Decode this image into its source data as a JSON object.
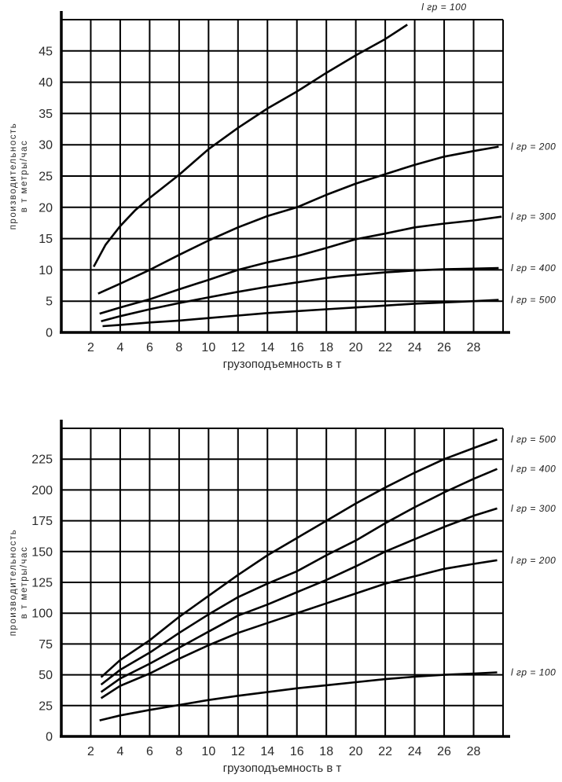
{
  "page": {
    "background": "#ffffff",
    "line_color": "#000000",
    "text_color": "#2a2a2a"
  },
  "chart_data": [
    {
      "type": "line",
      "title": "",
      "xlabel": "грузоподъемность в т",
      "ylabel": "производительность в т метры/час",
      "ylabel_lines": [
        "производительность",
        "в т метры/час"
      ],
      "xlim": [
        0,
        30
      ],
      "ylim": [
        0,
        50
      ],
      "grid": true,
      "x_ticks": [
        2,
        4,
        6,
        8,
        10,
        12,
        14,
        16,
        18,
        20,
        22,
        24,
        26,
        28
      ],
      "y_ticks": [
        0,
        5,
        10,
        15,
        20,
        25,
        30,
        35,
        40,
        45
      ],
      "legend_position": "labels-at-curve-ends",
      "series": [
        {
          "name": "l гр = 100",
          "label_pos": "top",
          "points": [
            [
              2.2,
              10.5
            ],
            [
              3,
              14
            ],
            [
              4,
              17
            ],
            [
              5,
              19.5
            ],
            [
              6,
              21.5
            ],
            [
              8,
              25.2
            ],
            [
              10,
              29.3
            ],
            [
              12,
              32.7
            ],
            [
              14,
              35.8
            ],
            [
              16,
              38.5
            ],
            [
              18,
              41.5
            ],
            [
              20,
              44.3
            ],
            [
              22,
              46.9
            ],
            [
              23.5,
              49.2
            ]
          ]
        },
        {
          "name": "l гр = 200",
          "label_pos": "right",
          "points": [
            [
              2.5,
              6.2
            ],
            [
              4,
              7.8
            ],
            [
              6,
              10
            ],
            [
              8,
              12.4
            ],
            [
              10,
              14.7
            ],
            [
              12,
              16.8
            ],
            [
              14,
              18.6
            ],
            [
              16,
              20
            ],
            [
              18,
              22
            ],
            [
              20,
              23.8
            ],
            [
              22,
              25.3
            ],
            [
              24,
              26.8
            ],
            [
              26,
              28.1
            ],
            [
              28,
              29
            ],
            [
              29.7,
              29.7
            ]
          ]
        },
        {
          "name": "l гр = 300",
          "label_pos": "right",
          "points": [
            [
              2.6,
              3
            ],
            [
              4,
              4
            ],
            [
              6,
              5.3
            ],
            [
              8,
              6.9
            ],
            [
              10,
              8.4
            ],
            [
              12,
              10
            ],
            [
              14,
              11.2
            ],
            [
              16,
              12.2
            ],
            [
              18,
              13.5
            ],
            [
              20,
              14.9
            ],
            [
              22,
              15.8
            ],
            [
              24,
              16.8
            ],
            [
              26,
              17.4
            ],
            [
              28,
              17.9
            ],
            [
              29.9,
              18.5
            ]
          ]
        },
        {
          "name": "l гр = 400",
          "label_pos": "right",
          "points": [
            [
              2.7,
              1.8
            ],
            [
              4,
              2.6
            ],
            [
              6,
              3.7
            ],
            [
              8,
              4.7
            ],
            [
              10,
              5.6
            ],
            [
              12,
              6.5
            ],
            [
              14,
              7.3
            ],
            [
              16,
              8
            ],
            [
              18,
              8.7
            ],
            [
              19,
              9
            ],
            [
              22,
              9.6
            ],
            [
              24,
              9.9
            ],
            [
              26,
              10.1
            ],
            [
              28,
              10.2
            ],
            [
              29.7,
              10.3
            ]
          ]
        },
        {
          "name": "l гр = 500",
          "label_pos": "right",
          "points": [
            [
              2.8,
              1
            ],
            [
              4,
              1.2
            ],
            [
              6,
              1.6
            ],
            [
              8,
              1.9
            ],
            [
              10,
              2.3
            ],
            [
              12,
              2.7
            ],
            [
              14,
              3.1
            ],
            [
              16,
              3.4
            ],
            [
              18,
              3.7
            ],
            [
              20,
              4
            ],
            [
              22,
              4.3
            ],
            [
              24,
              4.6
            ],
            [
              26,
              4.8
            ],
            [
              28,
              5
            ],
            [
              29.7,
              5.2
            ]
          ]
        }
      ]
    },
    {
      "type": "line",
      "title": "",
      "xlabel": "грузоподъемность в т",
      "ylabel": "производительность в т метры/час",
      "ylabel_lines": [
        "производительность",
        "в т метры/час"
      ],
      "xlim": [
        0,
        30
      ],
      "ylim": [
        0,
        250
      ],
      "grid": true,
      "x_ticks": [
        2,
        4,
        6,
        8,
        10,
        12,
        14,
        16,
        18,
        20,
        22,
        24,
        26,
        28
      ],
      "y_ticks": [
        0,
        25,
        50,
        75,
        100,
        125,
        150,
        175,
        200,
        225
      ],
      "legend_position": "labels-at-curve-ends",
      "series": [
        {
          "name": "l гр = 500",
          "label_pos": "right",
          "points": [
            [
              2.7,
              48
            ],
            [
              4,
              62
            ],
            [
              6,
              78
            ],
            [
              8,
              97
            ],
            [
              10,
              114
            ],
            [
              12,
              131
            ],
            [
              14,
              147
            ],
            [
              16,
              161
            ],
            [
              18,
              175
            ],
            [
              20,
              189
            ],
            [
              22,
              202
            ],
            [
              24,
              214
            ],
            [
              26,
              225
            ],
            [
              28,
              234
            ],
            [
              29.6,
              241
            ]
          ]
        },
        {
          "name": "l гр = 400",
          "label_pos": "right",
          "points": [
            [
              2.7,
              42
            ],
            [
              4,
              54
            ],
            [
              6,
              68
            ],
            [
              8,
              84
            ],
            [
              10,
              99
            ],
            [
              12,
              113
            ],
            [
              14,
              124
            ],
            [
              16,
              134
            ],
            [
              18,
              147
            ],
            [
              20,
              159
            ],
            [
              22,
              173
            ],
            [
              24,
              186
            ],
            [
              26,
              198
            ],
            [
              28,
              209
            ],
            [
              29.6,
              217
            ]
          ]
        },
        {
          "name": "l гр = 300",
          "label_pos": "right",
          "points": [
            [
              2.7,
              36
            ],
            [
              4,
              47
            ],
            [
              6,
              59
            ],
            [
              8,
              72
            ],
            [
              10,
              85
            ],
            [
              12,
              98
            ],
            [
              14,
              107
            ],
            [
              16,
              117
            ],
            [
              18,
              127
            ],
            [
              20,
              138
            ],
            [
              22,
              150
            ],
            [
              24,
              160
            ],
            [
              26,
              170
            ],
            [
              28,
              179
            ],
            [
              29.6,
              185
            ]
          ]
        },
        {
          "name": "l гр = 200",
          "label_pos": "right",
          "points": [
            [
              2.7,
              31
            ],
            [
              4,
              41
            ],
            [
              6,
              51
            ],
            [
              8,
              63
            ],
            [
              10,
              74
            ],
            [
              12,
              84
            ],
            [
              14,
              92
            ],
            [
              16,
              100
            ],
            [
              18,
              108
            ],
            [
              20,
              116
            ],
            [
              22,
              124
            ],
            [
              24,
              130
            ],
            [
              26,
              136
            ],
            [
              28,
              140
            ],
            [
              29.6,
              143
            ]
          ]
        },
        {
          "name": "l гр = 100",
          "label_pos": "right",
          "points": [
            [
              2.6,
              13
            ],
            [
              4,
              17
            ],
            [
              6,
              21.5
            ],
            [
              8,
              25.5
            ],
            [
              10,
              29.5
            ],
            [
              12,
              33
            ],
            [
              14,
              36
            ],
            [
              16,
              39
            ],
            [
              18,
              41.5
            ],
            [
              20,
              44
            ],
            [
              22,
              46.5
            ],
            [
              24,
              48.5
            ],
            [
              26,
              50
            ],
            [
              28,
              51
            ],
            [
              29.6,
              52
            ]
          ]
        }
      ]
    }
  ]
}
